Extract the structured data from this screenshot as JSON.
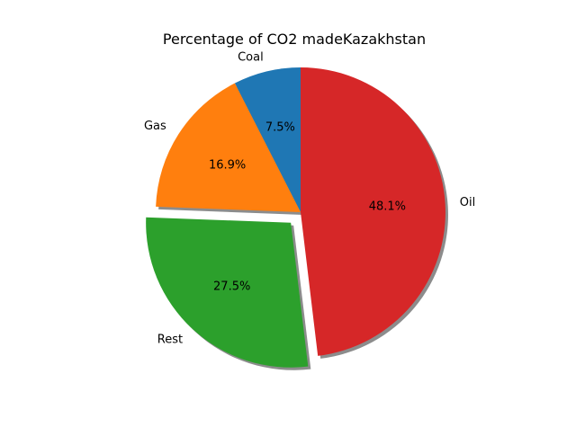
{
  "chart_data": {
    "type": "pie",
    "title": "Percentage of CO2 madeKazakhstan",
    "categories": [
      "Coal",
      "Gas",
      "Rest",
      "Oil"
    ],
    "values": [
      7.5,
      16.9,
      27.5,
      48.1
    ],
    "value_labels": [
      "7.5%",
      "16.9%",
      "27.5%",
      "48.1%"
    ],
    "colors": [
      "#1f77b4",
      "#ff7f0e",
      "#2ca02c",
      "#d62728"
    ],
    "exploded": [
      "Rest"
    ],
    "shadow": true,
    "start_angle_deg": 90,
    "direction": "counterclockwise"
  }
}
